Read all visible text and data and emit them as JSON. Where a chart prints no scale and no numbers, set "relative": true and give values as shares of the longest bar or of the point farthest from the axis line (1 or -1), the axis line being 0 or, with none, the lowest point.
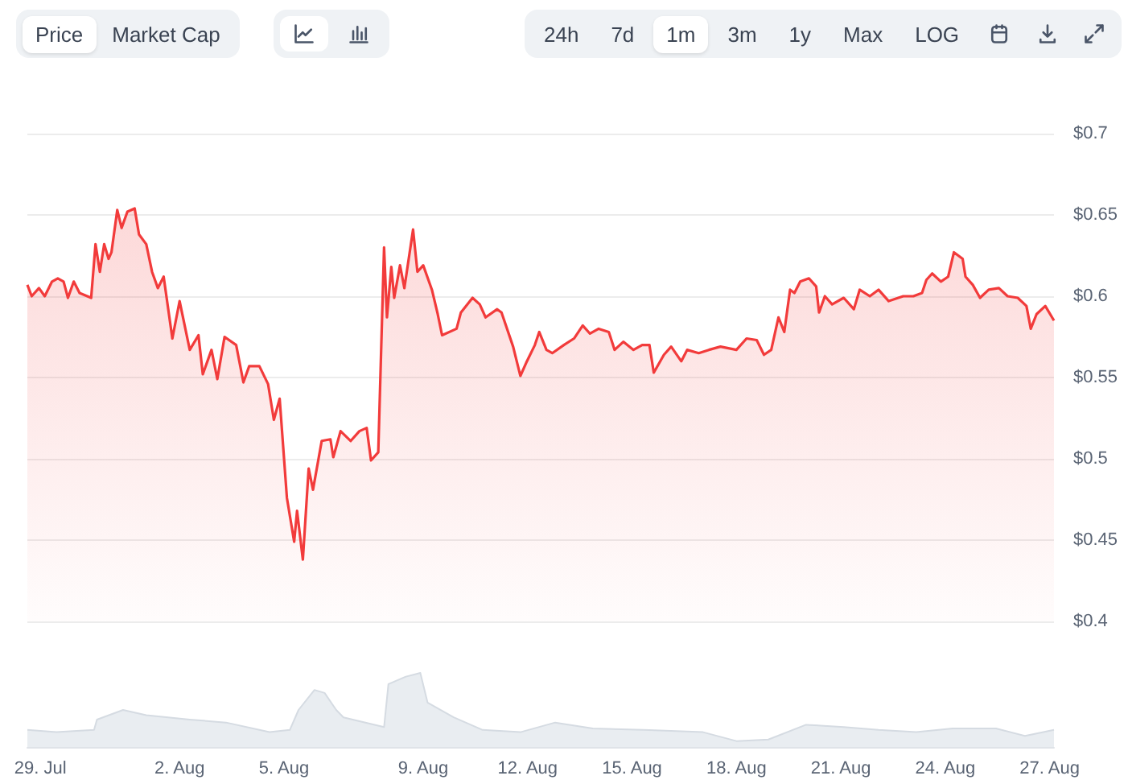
{
  "chart_data": [
    {
      "type": "area",
      "annotations": [
        "Price",
        "Market Cap",
        "24h",
        "7d",
        "1m",
        "3m",
        "1y",
        "Max",
        "LOG"
      ],
      "x": [
        "--07-28T15:00",
        "--07-28T18:00",
        "--07-28T23:00",
        "--07-29T03:00",
        "--07-29T08:00",
        "--07-29T12:00",
        "--07-29T16:00",
        "--07-29T19:00",
        "--07-29T23:00",
        "--07-30T03:00",
        "--07-30T11:00",
        "--07-30T14:00",
        "--07-30T17:00",
        "--07-30T20:00",
        "--07-30T23:00",
        "--07-31T01:00",
        "--07-31T05:00",
        "--07-31T08:00",
        "--07-31T12:00",
        "--07-31T17:00",
        "--07-31T20:00",
        "--08-01T01:00",
        "--08-01T05:00",
        "--08-01T09:00",
        "--08-01T13:00",
        "--08-01T19:00",
        "--08-02T00:00",
        "--08-02T07:00",
        "--08-02T13:00",
        "--08-02T16:00",
        "--08-02T22:00",
        "--08-03T02:00",
        "--08-03T07:00",
        "--08-03T15:00",
        "--08-03T20:00",
        "--08-04T00:00",
        "--08-04T07:00",
        "--08-04T13:00",
        "--08-04T17:00",
        "--08-04T21:00",
        "--08-05T02:00",
        "--08-05T07:00",
        "--08-05T09:00",
        "--08-05T13:00",
        "--08-05T17:00",
        "--08-05T20:00",
        "--08-06T02:00",
        "--08-06T08:00",
        "--08-06T10:00",
        "--08-06T15:00",
        "--08-06T22:00",
        "--08-07T04:00",
        "--08-07T09:00",
        "--08-07T12:00",
        "--08-07T17:00",
        "--08-07T21:00",
        "--08-07T23:00",
        "--08-08T02:00",
        "--08-08T04:00",
        "--08-08T08:00",
        "--08-08T11:00",
        "--08-08T17:00",
        "--08-08T20:00",
        "--08-09T00:00",
        "--08-09T06:00",
        "--08-09T10:00",
        "--08-09T13:00",
        "--08-09T23:00",
        "--08-10T02:00",
        "--08-10T10:00",
        "--08-10T15:00",
        "--08-10T19:00",
        "--08-11T03:00",
        "--08-11T06:00",
        "--08-11T14:00",
        "--08-11T19:00",
        "--08-11T23:00",
        "--08-12T05:00",
        "--08-12T08:00",
        "--08-12T13:00",
        "--08-12T17:00",
        "--08-13T01:00",
        "--08-13T08:00",
        "--08-13T14:00",
        "--08-13T19:00",
        "--08-14T01:00",
        "--08-14T08:00",
        "--08-14T12:00",
        "--08-14T18:00",
        "--08-15T01:00",
        "--08-15T07:00",
        "--08-15T12:00",
        "--08-15T15:00",
        "--08-15T22:00",
        "--08-16T03:00",
        "--08-16T10:00",
        "--08-16T14:00",
        "--08-16T22:00",
        "--08-17T05:00",
        "--08-17T13:00",
        "--08-18T00:00",
        "--08-18T07:00",
        "--08-18T14:00",
        "--08-18T19:00",
        "--08-19T00:00",
        "--08-19T05:00",
        "--08-19T09:00",
        "--08-19T13:00",
        "--08-19T16:00",
        "--08-19T20:00",
        "--08-20T02:00",
        "--08-20T07:00",
        "--08-20T09:00",
        "--08-20T13:00",
        "--08-20T18:00",
        "--08-21T02:00",
        "--08-21T09:00",
        "--08-21T13:00",
        "--08-21T20:00",
        "--08-22T02:00",
        "--08-22T09:00",
        "--08-22T19:00",
        "--08-23T02:00",
        "--08-23T08:00",
        "--08-23T11:00",
        "--08-23T15:00",
        "--08-23T21:00",
        "--08-24T02:00",
        "--08-24T06:00",
        "--08-24T12:00",
        "--08-24T14:00",
        "--08-24T19:00",
        "--08-25T00:00",
        "--08-25T06:00",
        "--08-25T13:00",
        "--08-25T19:00",
        "--08-26T02:00",
        "--08-26T08:00",
        "--08-26T11:00",
        "--08-26T15:00",
        "--08-26T21:00",
        "--08-27T03:00"
      ],
      "series": [
        {
          "color": "#f23b3b",
          "values": [
            0.607,
            0.6,
            0.605,
            0.6,
            0.609,
            0.611,
            0.609,
            0.599,
            0.609,
            0.602,
            0.599,
            0.632,
            0.615,
            0.632,
            0.623,
            0.627,
            0.653,
            0.642,
            0.652,
            0.654,
            0.638,
            0.632,
            0.615,
            0.605,
            0.612,
            0.574,
            0.597,
            0.567,
            0.576,
            0.552,
            0.567,
            0.549,
            0.575,
            0.57,
            0.547,
            0.557,
            0.557,
            0.546,
            0.524,
            0.537,
            0.476,
            0.449,
            0.468,
            0.438,
            0.494,
            0.481,
            0.511,
            0.512,
            0.501,
            0.517,
            0.511,
            0.517,
            0.519,
            0.499,
            0.504,
            0.63,
            0.587,
            0.618,
            0.599,
            0.619,
            0.605,
            0.641,
            0.615,
            0.619,
            0.604,
            0.589,
            0.576,
            0.58,
            0.59,
            0.599,
            0.595,
            0.587,
            0.592,
            0.59,
            0.569,
            0.551,
            0.559,
            0.57,
            0.578,
            0.567,
            0.565,
            0.57,
            0.574,
            0.582,
            0.577,
            0.58,
            0.578,
            0.567,
            0.572,
            0.567,
            0.57,
            0.57,
            0.553,
            0.564,
            0.569,
            0.56,
            0.567,
            0.565,
            0.567,
            0.569,
            0.567,
            0.574,
            0.573,
            0.564,
            0.567,
            0.587,
            0.578,
            0.604,
            0.602,
            0.609,
            0.611,
            0.606,
            0.59,
            0.6,
            0.595,
            0.599,
            0.592,
            0.604,
            0.6,
            0.604,
            0.597,
            0.6,
            0.6,
            0.602,
            0.61,
            0.614,
            0.609,
            0.612,
            0.627,
            0.623,
            0.612,
            0.607,
            0.599,
            0.604,
            0.605,
            0.6,
            0.599,
            0.594,
            0.58,
            0.589,
            0.594,
            0.585
          ]
        }
      ],
      "xlim": [
        "--07-28T15:00",
        "--08-27T03:00"
      ],
      "ylim": [
        0.4,
        0.7
      ],
      "yticks": [
        {
          "value": 0.4,
          "label": "$0.4"
        },
        {
          "value": 0.45,
          "label": "$0.45"
        },
        {
          "value": 0.5,
          "label": "$0.5"
        },
        {
          "value": 0.55,
          "label": "$0.55"
        },
        {
          "value": 0.6,
          "label": "$0.6"
        },
        {
          "value": 0.65,
          "label": "$0.65"
        },
        {
          "value": 0.7,
          "label": "$0.7"
        }
      ],
      "grid": "y",
      "tick_labels": "y"
    },
    {
      "type": "area",
      "relative": true,
      "x": [
        "--07-28T15:00",
        "--07-29T11:00",
        "--07-30T13:00",
        "--07-30T15:00",
        "--07-31T09:00",
        "--08-01T01:00",
        "--08-02T07:00",
        "--08-03T08:00",
        "--08-04T14:00",
        "--08-05T04:00",
        "--08-05T10:00",
        "--08-05T21:00",
        "--08-06T04:00",
        "--08-06T12:00",
        "--08-06T17:00",
        "--08-07T21:00",
        "--08-08T00:00",
        "--08-08T12:00",
        "--08-08T22:00",
        "--08-09T03:00",
        "--08-09T21:00",
        "--08-10T17:00",
        "--08-11T19:00",
        "--08-12T19:00",
        "--08-13T21:00",
        "--08-15T08:00",
        "--08-17T01:00",
        "--08-18T00:00",
        "--08-18T22:00",
        "--08-20T00:00",
        "--08-21T02:00",
        "--08-22T02:00",
        "--08-23T04:00",
        "--08-24T05:00",
        "--08-25T11:00",
        "--08-26T07:00",
        "--08-27T03:00"
      ],
      "series": [
        {
          "color": "#e9edf1",
          "values": [
            0.23,
            0.2,
            0.23,
            0.37,
            0.5,
            0.43,
            0.37,
            0.33,
            0.2,
            0.23,
            0.5,
            0.77,
            0.73,
            0.5,
            0.4,
            0.27,
            0.85,
            0.95,
            1.0,
            0.6,
            0.4,
            0.23,
            0.2,
            0.33,
            0.25,
            0.23,
            0.2,
            0.08,
            0.1,
            0.3,
            0.27,
            0.23,
            0.2,
            0.25,
            0.25,
            0.15,
            0.23
          ]
        }
      ],
      "xlim": [
        "--07-28T15:00",
        "--08-27T03:00"
      ],
      "xticks": [
        {
          "value": "--07-29",
          "label": "29. Jul"
        },
        {
          "value": "--08-02",
          "label": "2. Aug"
        },
        {
          "value": "--08-05",
          "label": "5. Aug"
        },
        {
          "value": "--08-09",
          "label": "9. Aug"
        },
        {
          "value": "--08-12",
          "label": "12. Aug"
        },
        {
          "value": "--08-15",
          "label": "15. Aug"
        },
        {
          "value": "--08-18",
          "label": "18. Aug"
        },
        {
          "value": "--08-21",
          "label": "21. Aug"
        },
        {
          "value": "--08-24",
          "label": "24. Aug"
        },
        {
          "value": "--08-27",
          "label": "27. Aug"
        }
      ],
      "tick_labels": "x"
    }
  ]
}
